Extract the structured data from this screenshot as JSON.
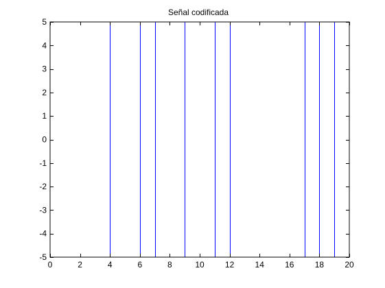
{
  "chart_data": {
    "type": "line",
    "title": "Señal codificada",
    "xlabel": "",
    "ylabel": "",
    "xlim": [
      0,
      20
    ],
    "ylim": [
      -5,
      5
    ],
    "x_ticks": [
      0,
      2,
      4,
      6,
      8,
      10,
      12,
      14,
      16,
      18,
      20
    ],
    "y_ticks": [
      5,
      4,
      3,
      2,
      1,
      0,
      -1,
      -2,
      -3,
      -4,
      -5
    ],
    "grid": false,
    "legend": "none",
    "series": [
      {
        "color": "#0000ff",
        "segments": [
          {
            "x": 4,
            "y": [
              -5,
              5
            ]
          },
          {
            "x": 6,
            "y": [
              -5,
              5
            ]
          },
          {
            "x": 7,
            "y": [
              -5,
              5
            ]
          },
          {
            "x": 9,
            "y": [
              -5,
              5
            ]
          },
          {
            "x": 11,
            "y": [
              -5,
              5
            ]
          },
          {
            "x": 12,
            "y": [
              -5,
              5
            ]
          },
          {
            "x": 17,
            "y": [
              -5,
              5
            ]
          },
          {
            "x": 18,
            "y": [
              -5,
              5
            ]
          },
          {
            "x": 19,
            "y": [
              -5,
              5
            ]
          }
        ]
      }
    ]
  }
}
